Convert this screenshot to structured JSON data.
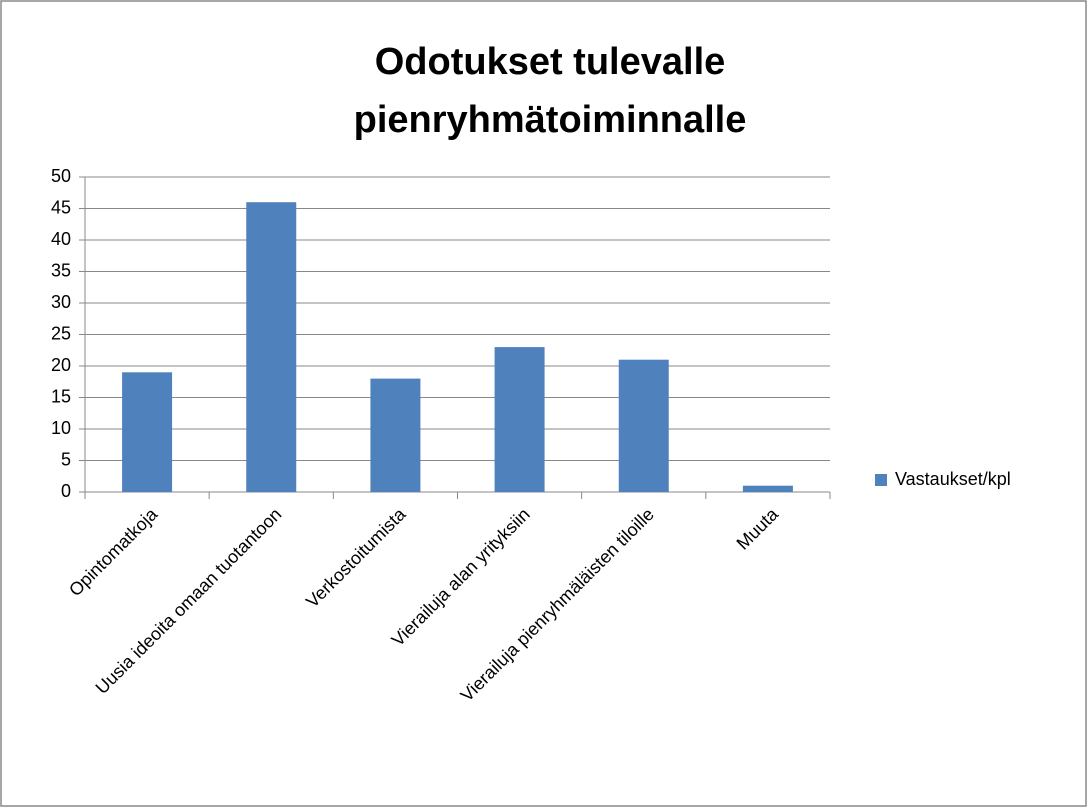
{
  "chart_data": {
    "type": "bar",
    "title": [
      "Odotukset tulevalle",
      "pienryhmätoiminnalle"
    ],
    "categories": [
      "Opintomatkoja",
      "Uusia ideoita omaan tuotantoon",
      "Verkostoitumista",
      "Vierailuja alan yrityksiin",
      "Vierailuja pienryhmäläisten tiloille",
      "Muuta"
    ],
    "series": [
      {
        "name": "Vastaukset/kpl",
        "color": "#4f81bd",
        "values": [
          19,
          46,
          18,
          23,
          21,
          1
        ]
      }
    ],
    "ylim": [
      0,
      50
    ],
    "yticks": [
      0,
      5,
      10,
      15,
      20,
      25,
      30,
      35,
      40,
      45,
      50
    ],
    "grid": true,
    "legend": "right"
  }
}
